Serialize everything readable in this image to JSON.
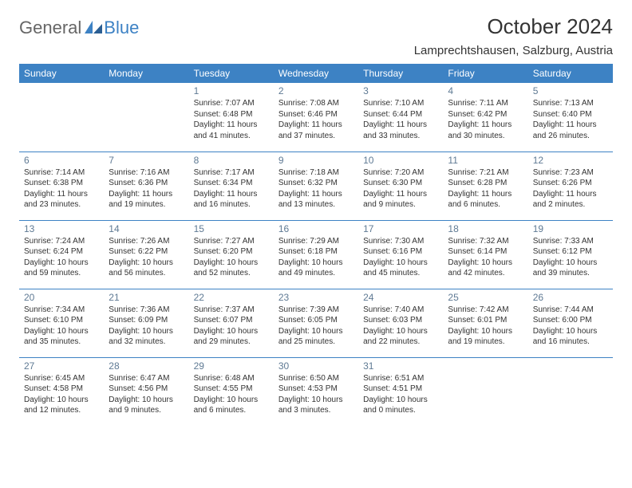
{
  "logo": {
    "general": "General",
    "blue": "Blue"
  },
  "title": "October 2024",
  "location": "Lamprechtshausen, Salzburg, Austria",
  "colors": {
    "header_bg": "#3d82c4",
    "header_text": "#ffffff",
    "rule": "#3d82c4",
    "daynum": "#5f7a94",
    "body_text": "#333333",
    "page_bg": "#ffffff"
  },
  "weekdays": [
    "Sunday",
    "Monday",
    "Tuesday",
    "Wednesday",
    "Thursday",
    "Friday",
    "Saturday"
  ],
  "weeks": [
    [
      null,
      null,
      {
        "n": "1",
        "sr": "7:07 AM",
        "ss": "6:48 PM",
        "dl": "11 hours and 41 minutes."
      },
      {
        "n": "2",
        "sr": "7:08 AM",
        "ss": "6:46 PM",
        "dl": "11 hours and 37 minutes."
      },
      {
        "n": "3",
        "sr": "7:10 AM",
        "ss": "6:44 PM",
        "dl": "11 hours and 33 minutes."
      },
      {
        "n": "4",
        "sr": "7:11 AM",
        "ss": "6:42 PM",
        "dl": "11 hours and 30 minutes."
      },
      {
        "n": "5",
        "sr": "7:13 AM",
        "ss": "6:40 PM",
        "dl": "11 hours and 26 minutes."
      }
    ],
    [
      {
        "n": "6",
        "sr": "7:14 AM",
        "ss": "6:38 PM",
        "dl": "11 hours and 23 minutes."
      },
      {
        "n": "7",
        "sr": "7:16 AM",
        "ss": "6:36 PM",
        "dl": "11 hours and 19 minutes."
      },
      {
        "n": "8",
        "sr": "7:17 AM",
        "ss": "6:34 PM",
        "dl": "11 hours and 16 minutes."
      },
      {
        "n": "9",
        "sr": "7:18 AM",
        "ss": "6:32 PM",
        "dl": "11 hours and 13 minutes."
      },
      {
        "n": "10",
        "sr": "7:20 AM",
        "ss": "6:30 PM",
        "dl": "11 hours and 9 minutes."
      },
      {
        "n": "11",
        "sr": "7:21 AM",
        "ss": "6:28 PM",
        "dl": "11 hours and 6 minutes."
      },
      {
        "n": "12",
        "sr": "7:23 AM",
        "ss": "6:26 PM",
        "dl": "11 hours and 2 minutes."
      }
    ],
    [
      {
        "n": "13",
        "sr": "7:24 AM",
        "ss": "6:24 PM",
        "dl": "10 hours and 59 minutes."
      },
      {
        "n": "14",
        "sr": "7:26 AM",
        "ss": "6:22 PM",
        "dl": "10 hours and 56 minutes."
      },
      {
        "n": "15",
        "sr": "7:27 AM",
        "ss": "6:20 PM",
        "dl": "10 hours and 52 minutes."
      },
      {
        "n": "16",
        "sr": "7:29 AM",
        "ss": "6:18 PM",
        "dl": "10 hours and 49 minutes."
      },
      {
        "n": "17",
        "sr": "7:30 AM",
        "ss": "6:16 PM",
        "dl": "10 hours and 45 minutes."
      },
      {
        "n": "18",
        "sr": "7:32 AM",
        "ss": "6:14 PM",
        "dl": "10 hours and 42 minutes."
      },
      {
        "n": "19",
        "sr": "7:33 AM",
        "ss": "6:12 PM",
        "dl": "10 hours and 39 minutes."
      }
    ],
    [
      {
        "n": "20",
        "sr": "7:34 AM",
        "ss": "6:10 PM",
        "dl": "10 hours and 35 minutes."
      },
      {
        "n": "21",
        "sr": "7:36 AM",
        "ss": "6:09 PM",
        "dl": "10 hours and 32 minutes."
      },
      {
        "n": "22",
        "sr": "7:37 AM",
        "ss": "6:07 PM",
        "dl": "10 hours and 29 minutes."
      },
      {
        "n": "23",
        "sr": "7:39 AM",
        "ss": "6:05 PM",
        "dl": "10 hours and 25 minutes."
      },
      {
        "n": "24",
        "sr": "7:40 AM",
        "ss": "6:03 PM",
        "dl": "10 hours and 22 minutes."
      },
      {
        "n": "25",
        "sr": "7:42 AM",
        "ss": "6:01 PM",
        "dl": "10 hours and 19 minutes."
      },
      {
        "n": "26",
        "sr": "7:44 AM",
        "ss": "6:00 PM",
        "dl": "10 hours and 16 minutes."
      }
    ],
    [
      {
        "n": "27",
        "sr": "6:45 AM",
        "ss": "4:58 PM",
        "dl": "10 hours and 12 minutes."
      },
      {
        "n": "28",
        "sr": "6:47 AM",
        "ss": "4:56 PM",
        "dl": "10 hours and 9 minutes."
      },
      {
        "n": "29",
        "sr": "6:48 AM",
        "ss": "4:55 PM",
        "dl": "10 hours and 6 minutes."
      },
      {
        "n": "30",
        "sr": "6:50 AM",
        "ss": "4:53 PM",
        "dl": "10 hours and 3 minutes."
      },
      {
        "n": "31",
        "sr": "6:51 AM",
        "ss": "4:51 PM",
        "dl": "10 hours and 0 minutes."
      },
      null,
      null
    ]
  ]
}
